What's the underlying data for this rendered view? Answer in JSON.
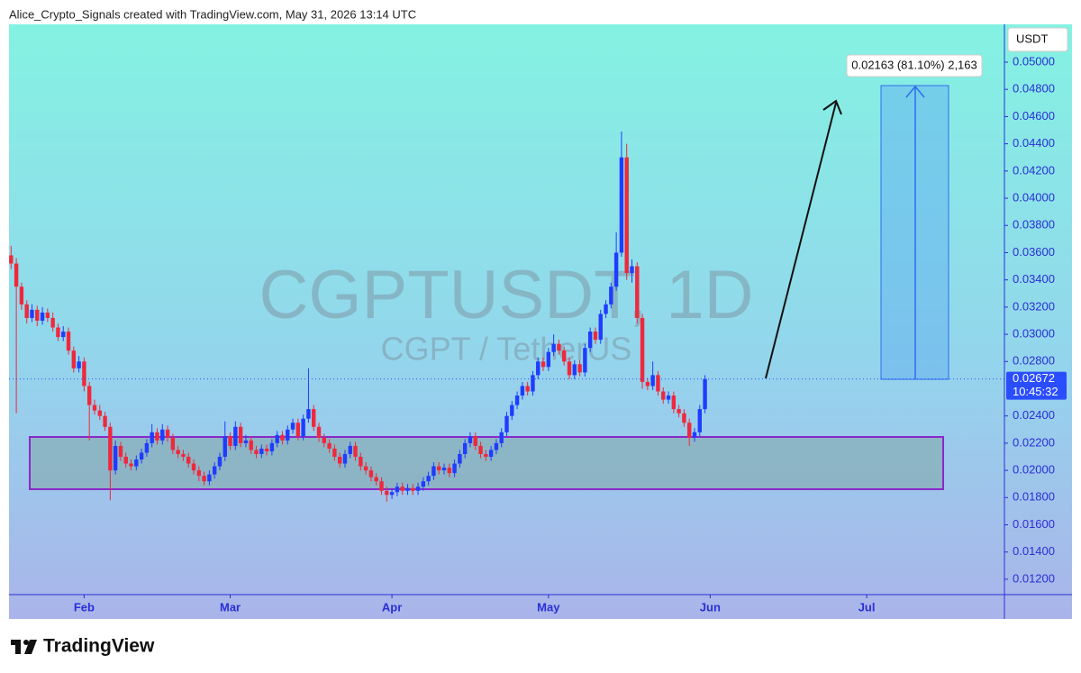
{
  "header": "Alice_Crypto_Signals created with TradingView.com, May 31, 2026 13:14 UTC",
  "footer": {
    "brand": "TradingView"
  },
  "chart_data": {
    "type": "candlestick",
    "title": "CGPTUSDT, 1D",
    "subtitle": "CGPT / TetherUS",
    "currency": "USDT",
    "countdown": "10:45:32",
    "measure_label": "0.02163 (81.10%) 2,163",
    "up_color": "#1f3cff",
    "down_color": "#f0283c",
    "x": [
      0,
      1,
      2,
      3,
      4,
      5,
      6,
      7,
      8,
      9,
      10,
      11,
      12,
      13,
      14,
      15,
      16,
      17,
      18,
      19,
      20,
      21,
      22,
      23,
      24,
      25,
      26,
      27,
      28,
      29,
      30,
      31,
      32,
      33,
      34,
      35,
      36,
      37,
      38,
      39,
      40,
      41,
      42,
      43,
      44,
      45,
      46,
      47,
      48,
      49,
      50,
      51,
      52,
      53,
      54,
      55,
      56,
      57,
      58,
      59,
      60,
      61,
      62,
      63,
      64,
      65,
      66,
      67,
      68,
      69,
      70,
      71,
      72,
      73,
      74,
      75,
      76,
      77,
      78,
      79,
      80,
      81,
      82,
      83,
      84,
      85,
      86,
      87,
      88,
      89,
      90,
      91,
      92,
      93,
      94,
      95,
      96,
      97,
      98,
      99,
      100,
      101,
      102,
      103,
      104,
      105,
      106,
      107,
      108,
      109,
      110,
      111,
      112,
      113,
      114,
      115,
      116,
      117,
      118,
      119,
      120,
      121,
      122,
      123,
      124,
      125,
      126,
      127,
      128,
      129,
      130,
      131,
      132,
      133
    ],
    "ohlc": [
      [
        0.0358,
        0.0365,
        0.0348,
        0.0352
      ],
      [
        0.0352,
        0.0356,
        0.0242,
        0.0335
      ],
      [
        0.0335,
        0.0338,
        0.0318,
        0.0322
      ],
      [
        0.0322,
        0.0325,
        0.0308,
        0.0312
      ],
      [
        0.0312,
        0.0322,
        0.0309,
        0.0318
      ],
      [
        0.0318,
        0.0321,
        0.0306,
        0.031
      ],
      [
        0.031,
        0.032,
        0.0307,
        0.0316
      ],
      [
        0.0316,
        0.0319,
        0.0309,
        0.0312
      ],
      [
        0.0312,
        0.0316,
        0.0302,
        0.0305
      ],
      [
        0.0305,
        0.0308,
        0.0295,
        0.0298
      ],
      [
        0.0298,
        0.0306,
        0.0295,
        0.0302
      ],
      [
        0.0302,
        0.0305,
        0.0285,
        0.0288
      ],
      [
        0.0288,
        0.0291,
        0.0272,
        0.0275
      ],
      [
        0.0275,
        0.0284,
        0.0272,
        0.028
      ],
      [
        0.028,
        0.0283,
        0.0258,
        0.0262
      ],
      [
        0.0262,
        0.0265,
        0.0222,
        0.0248
      ],
      [
        0.0248,
        0.0252,
        0.0241,
        0.0244
      ],
      [
        0.0244,
        0.0248,
        0.0237,
        0.024
      ],
      [
        0.024,
        0.0243,
        0.0229,
        0.0232
      ],
      [
        0.0232,
        0.0235,
        0.0178,
        0.02
      ],
      [
        0.02,
        0.0222,
        0.0197,
        0.0218
      ],
      [
        0.0218,
        0.0221,
        0.0207,
        0.021
      ],
      [
        0.021,
        0.0213,
        0.0202,
        0.0205
      ],
      [
        0.0205,
        0.0208,
        0.02,
        0.0203
      ],
      [
        0.0203,
        0.0211,
        0.02,
        0.0208
      ],
      [
        0.0208,
        0.0216,
        0.0205,
        0.0213
      ],
      [
        0.0213,
        0.0223,
        0.021,
        0.022
      ],
      [
        0.022,
        0.0234,
        0.0217,
        0.0228
      ],
      [
        0.0228,
        0.0231,
        0.0219,
        0.0222
      ],
      [
        0.0222,
        0.0234,
        0.0219,
        0.023
      ],
      [
        0.023,
        0.0233,
        0.0221,
        0.0224
      ],
      [
        0.0224,
        0.0227,
        0.0212,
        0.0215
      ],
      [
        0.0215,
        0.0218,
        0.0209,
        0.0212
      ],
      [
        0.0212,
        0.0215,
        0.0207,
        0.021
      ],
      [
        0.021,
        0.0213,
        0.0202,
        0.0205
      ],
      [
        0.0205,
        0.0208,
        0.0197,
        0.02
      ],
      [
        0.02,
        0.0203,
        0.0192,
        0.0196
      ],
      [
        0.0196,
        0.0199,
        0.0189,
        0.0192
      ],
      [
        0.0192,
        0.02,
        0.0189,
        0.0197
      ],
      [
        0.0197,
        0.0206,
        0.0194,
        0.0203
      ],
      [
        0.0203,
        0.0213,
        0.02,
        0.021
      ],
      [
        0.021,
        0.0236,
        0.0207,
        0.0225
      ],
      [
        0.0225,
        0.0228,
        0.0215,
        0.0218
      ],
      [
        0.0218,
        0.0236,
        0.0215,
        0.0232
      ],
      [
        0.0232,
        0.0235,
        0.0217,
        0.022
      ],
      [
        0.022,
        0.0226,
        0.0217,
        0.0222
      ],
      [
        0.0222,
        0.0225,
        0.0212,
        0.0215
      ],
      [
        0.0215,
        0.0218,
        0.0209,
        0.0212
      ],
      [
        0.0212,
        0.0219,
        0.0209,
        0.0216
      ],
      [
        0.0216,
        0.0219,
        0.0211,
        0.0214
      ],
      [
        0.0214,
        0.0223,
        0.0211,
        0.022
      ],
      [
        0.022,
        0.0229,
        0.0217,
        0.0226
      ],
      [
        0.0226,
        0.0229,
        0.0219,
        0.0222
      ],
      [
        0.0222,
        0.0233,
        0.0219,
        0.023
      ],
      [
        0.023,
        0.0238,
        0.0227,
        0.0235
      ],
      [
        0.0235,
        0.0238,
        0.0222,
        0.0225
      ],
      [
        0.0225,
        0.0241,
        0.0222,
        0.0238
      ],
      [
        0.0238,
        0.0275,
        0.0235,
        0.0245
      ],
      [
        0.0245,
        0.0248,
        0.0229,
        0.0232
      ],
      [
        0.0232,
        0.0235,
        0.0221,
        0.0224
      ],
      [
        0.0224,
        0.0227,
        0.0217,
        0.022
      ],
      [
        0.022,
        0.0223,
        0.0213,
        0.0216
      ],
      [
        0.0216,
        0.0219,
        0.0207,
        0.021
      ],
      [
        0.021,
        0.0213,
        0.0202,
        0.0205
      ],
      [
        0.0205,
        0.0215,
        0.0202,
        0.0212
      ],
      [
        0.0212,
        0.0221,
        0.0209,
        0.0218
      ],
      [
        0.0218,
        0.0221,
        0.0207,
        0.021
      ],
      [
        0.021,
        0.0213,
        0.02,
        0.0203
      ],
      [
        0.0203,
        0.0206,
        0.0197,
        0.02
      ],
      [
        0.02,
        0.0203,
        0.0192,
        0.0195
      ],
      [
        0.0195,
        0.0198,
        0.0189,
        0.0192
      ],
      [
        0.0192,
        0.0195,
        0.0182,
        0.0185
      ],
      [
        0.0185,
        0.0188,
        0.0177,
        0.0182
      ],
      [
        0.0182,
        0.0187,
        0.0179,
        0.0184
      ],
      [
        0.0184,
        0.0191,
        0.0181,
        0.0188
      ],
      [
        0.0188,
        0.0191,
        0.0182,
        0.0185
      ],
      [
        0.0185,
        0.019,
        0.0182,
        0.0187
      ],
      [
        0.0187,
        0.019,
        0.0182,
        0.0185
      ],
      [
        0.0185,
        0.0191,
        0.0182,
        0.0188
      ],
      [
        0.0188,
        0.0195,
        0.0185,
        0.0192
      ],
      [
        0.0192,
        0.0199,
        0.0189,
        0.0196
      ],
      [
        0.0196,
        0.0206,
        0.0193,
        0.0203
      ],
      [
        0.0203,
        0.0206,
        0.0197,
        0.02
      ],
      [
        0.02,
        0.0205,
        0.0197,
        0.0202
      ],
      [
        0.0202,
        0.0205,
        0.0195,
        0.0198
      ],
      [
        0.0198,
        0.0208,
        0.0195,
        0.0205
      ],
      [
        0.0205,
        0.0215,
        0.0202,
        0.0212
      ],
      [
        0.0212,
        0.0223,
        0.0209,
        0.022
      ],
      [
        0.022,
        0.0228,
        0.0217,
        0.0225
      ],
      [
        0.0225,
        0.0228,
        0.0215,
        0.0218
      ],
      [
        0.0218,
        0.0221,
        0.0209,
        0.0212
      ],
      [
        0.0212,
        0.0215,
        0.0207,
        0.021
      ],
      [
        0.021,
        0.0218,
        0.0207,
        0.0215
      ],
      [
        0.0215,
        0.0223,
        0.0212,
        0.022
      ],
      [
        0.022,
        0.0231,
        0.0217,
        0.0228
      ],
      [
        0.0228,
        0.0243,
        0.0225,
        0.024
      ],
      [
        0.024,
        0.0251,
        0.0237,
        0.0248
      ],
      [
        0.0248,
        0.0258,
        0.0245,
        0.0255
      ],
      [
        0.0255,
        0.0265,
        0.0252,
        0.0262
      ],
      [
        0.0262,
        0.0265,
        0.0255,
        0.0258
      ],
      [
        0.0258,
        0.0273,
        0.0255,
        0.027
      ],
      [
        0.027,
        0.0283,
        0.0267,
        0.028
      ],
      [
        0.028,
        0.0283,
        0.0273,
        0.0276
      ],
      [
        0.0276,
        0.029,
        0.0273,
        0.0287
      ],
      [
        0.0287,
        0.03,
        0.0284,
        0.0293
      ],
      [
        0.0293,
        0.0296,
        0.0285,
        0.0288
      ],
      [
        0.0288,
        0.0291,
        0.0277,
        0.028
      ],
      [
        0.028,
        0.0283,
        0.0267,
        0.027
      ],
      [
        0.027,
        0.0281,
        0.0267,
        0.0278
      ],
      [
        0.0278,
        0.0281,
        0.0269,
        0.0272
      ],
      [
        0.0272,
        0.0293,
        0.0269,
        0.029
      ],
      [
        0.029,
        0.0305,
        0.0287,
        0.0302
      ],
      [
        0.0302,
        0.0305,
        0.0293,
        0.0296
      ],
      [
        0.0296,
        0.0318,
        0.0293,
        0.0315
      ],
      [
        0.0315,
        0.0325,
        0.0312,
        0.0322
      ],
      [
        0.0322,
        0.0338,
        0.0319,
        0.0335
      ],
      [
        0.0335,
        0.0375,
        0.0332,
        0.036
      ],
      [
        0.036,
        0.0449,
        0.0357,
        0.043
      ],
      [
        0.043,
        0.044,
        0.034,
        0.0345
      ],
      [
        0.0345,
        0.0355,
        0.0338,
        0.035
      ],
      [
        0.035,
        0.0353,
        0.0308,
        0.0312
      ],
      [
        0.0312,
        0.0315,
        0.026,
        0.0265
      ],
      [
        0.0265,
        0.0268,
        0.0259,
        0.0262
      ],
      [
        0.0262,
        0.028,
        0.0259,
        0.027
      ],
      [
        0.027,
        0.0273,
        0.0255,
        0.0258
      ],
      [
        0.0258,
        0.0261,
        0.0249,
        0.0252
      ],
      [
        0.0252,
        0.0258,
        0.0249,
        0.0255
      ],
      [
        0.0255,
        0.0258,
        0.0242,
        0.0245
      ],
      [
        0.0245,
        0.0248,
        0.0239,
        0.0242
      ],
      [
        0.0242,
        0.0245,
        0.0232,
        0.0235
      ],
      [
        0.0235,
        0.0238,
        0.0218,
        0.0224
      ],
      [
        0.0224,
        0.0231,
        0.0221,
        0.0228
      ],
      [
        0.0228,
        0.0248,
        0.0225,
        0.0245
      ],
      [
        0.0245,
        0.027,
        0.0242,
        0.02672
      ]
    ],
    "xlim": [
      -0.4,
      190.4
    ],
    "xticks": [
      {
        "value": 14,
        "label": "Feb"
      },
      {
        "value": 42,
        "label": "Mar"
      },
      {
        "value": 73,
        "label": "Apr"
      },
      {
        "value": 103,
        "label": "May"
      },
      {
        "value": 134,
        "label": "Jun"
      },
      {
        "value": 164,
        "label": "Jul"
      }
    ],
    "ylim": [
      0.01087,
      0.05278
    ],
    "yticks": [
      {
        "value": 0.012,
        "label": "0.01200"
      },
      {
        "value": 0.014,
        "label": "0.01400"
      },
      {
        "value": 0.016,
        "label": "0.01600"
      },
      {
        "value": 0.018,
        "label": "0.01800"
      },
      {
        "value": 0.02,
        "label": "0.02000"
      },
      {
        "value": 0.022,
        "label": "0.02200"
      },
      {
        "value": 0.024,
        "label": "0.02400"
      },
      {
        "value": 0.028,
        "label": "0.02800"
      },
      {
        "value": 0.03,
        "label": "0.03000"
      },
      {
        "value": 0.032,
        "label": "0.03200"
      },
      {
        "value": 0.034,
        "label": "0.03400"
      },
      {
        "value": 0.036,
        "label": "0.03600"
      },
      {
        "value": 0.038,
        "label": "0.03800"
      },
      {
        "value": 0.04,
        "label": "0.04000"
      },
      {
        "value": 0.042,
        "label": "0.04200"
      },
      {
        "value": 0.044,
        "label": "0.04400"
      },
      {
        "value": 0.046,
        "label": "0.04600"
      },
      {
        "value": 0.048,
        "label": "0.04800"
      },
      {
        "value": 0.05,
        "label": "0.05000"
      }
    ]
  }
}
